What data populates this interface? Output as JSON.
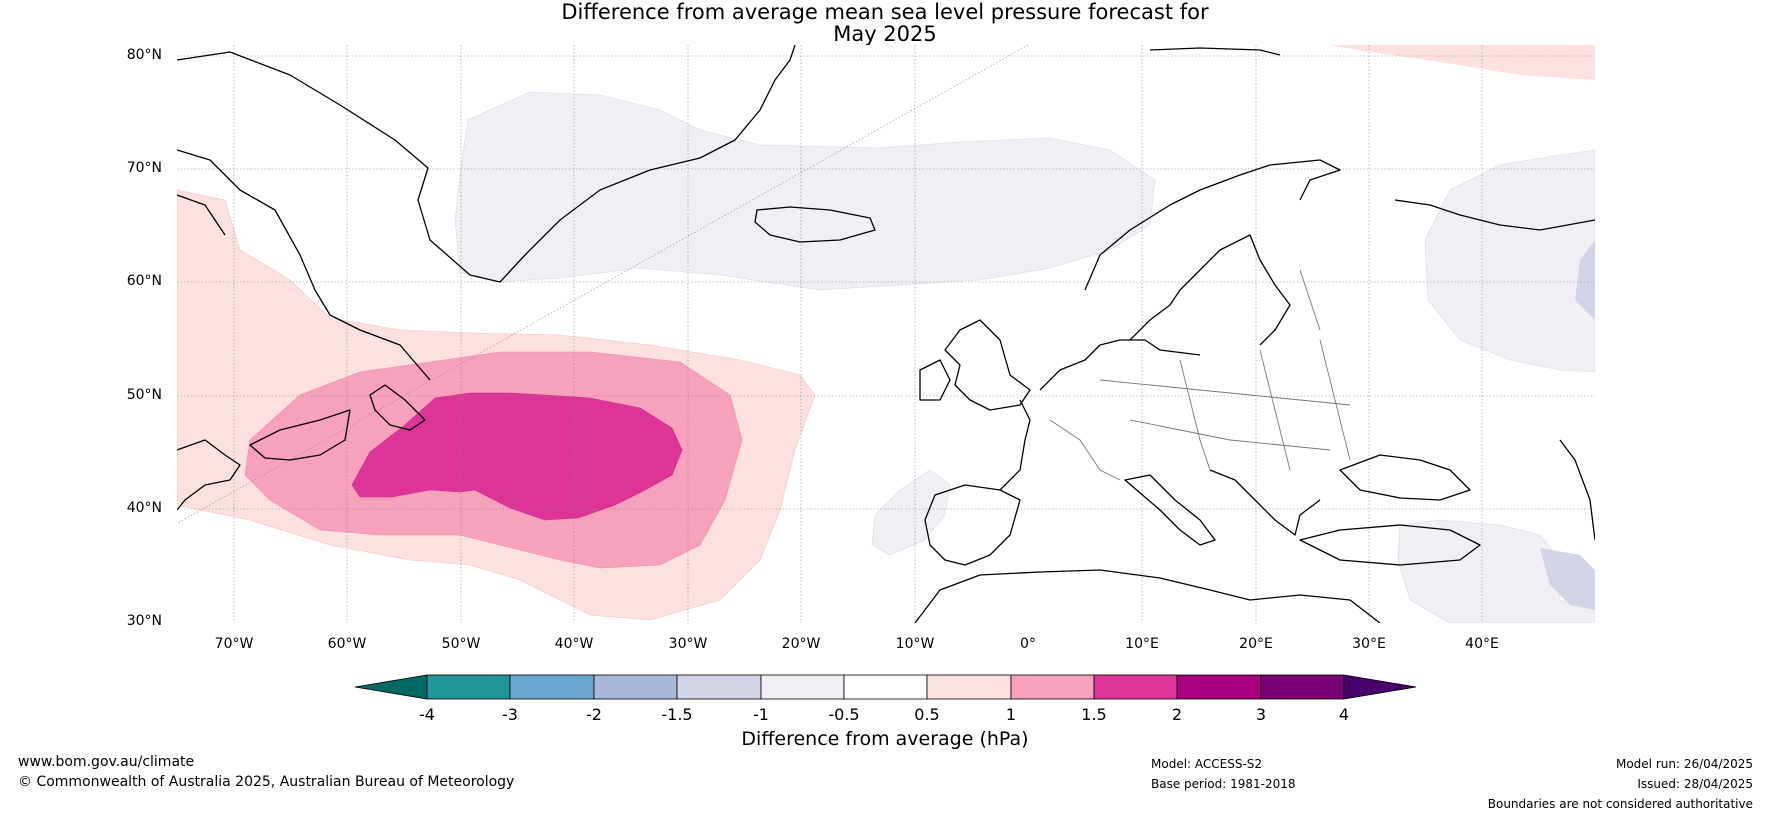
{
  "title": {
    "line1": "Difference from average mean sea level pressure forecast for",
    "line2": "May 2025"
  },
  "map": {
    "projection": "equirectangular",
    "lon_range": [
      -75,
      50
    ],
    "lat_range": [
      30,
      81
    ],
    "grid": true,
    "lat_labels": [
      "80°N",
      "70°N",
      "60°N",
      "50°N",
      "40°N",
      "30°N"
    ],
    "lon_labels": [
      "70°W",
      "60°W",
      "50°W",
      "40°W",
      "30°W",
      "20°W",
      "10°W",
      "0°",
      "10°E",
      "20°E",
      "30°E",
      "40°E"
    ],
    "anomaly_regions": [
      {
        "category": "0.5 to 1",
        "area": "western North Atlantic, Newfoundland and Labrador"
      },
      {
        "category": "1 to 1.5",
        "area": "central North Atlantic"
      },
      {
        "category": "1.5 to 2",
        "area": "North Atlantic centred near 45°N 42°W"
      },
      {
        "category": "-1 to -0.5",
        "area": "Greenland Sea, Iceland, Norwegian Sea"
      },
      {
        "category": "-1 to -0.5",
        "area": "western Russia"
      },
      {
        "category": "-1.5 to -1",
        "area": "eastern Mediterranean / Turkey"
      },
      {
        "category": "0.5 to 1",
        "area": "Arctic north of Svalbard"
      }
    ]
  },
  "colorbar": {
    "label": "Difference from average (hPa)",
    "ticks": [
      "-4",
      "-3",
      "-2",
      "-1.5",
      "-1",
      "-0.5",
      "0.5",
      "1",
      "1.5",
      "2",
      "3",
      "4"
    ],
    "colors": {
      "below_-4": "#006b63",
      "-4_-3": "#1f9499",
      "-3_-2": "#6aa8d1",
      "-2_-1.5": "#a8b8da",
      "-1.5_-1": "#d2d3e6",
      "-1_-0.5": "#f1eef4",
      "-0.5_0.5": "#ffffff",
      "0.5_1": "#fde0e0",
      "1_1.5": "#f8a1bc",
      "1.5_2": "#de3498",
      "2_3": "#a8007e",
      "3_4": "#780077",
      "above_4": "#4a006a"
    }
  },
  "footer": {
    "website": "www.bom.gov.au/climate",
    "copyright": "© Commonwealth of Australia 2025, Australian Bureau of Meteorology",
    "model": "Model: ACCESS-S2",
    "base_period": "Base period: 1981-2018",
    "model_run": "Model run: 26/04/2025",
    "issued": "Issued: 28/04/2025",
    "boundaries": "Boundaries are not considered authoritative"
  }
}
